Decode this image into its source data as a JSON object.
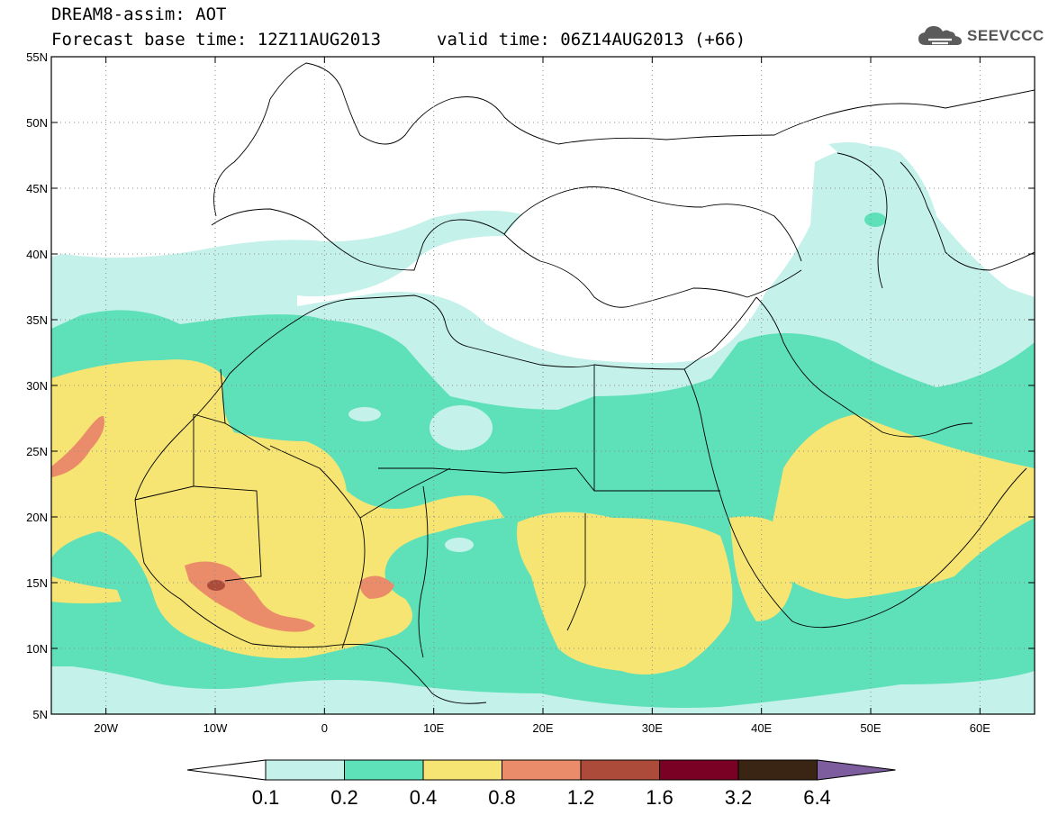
{
  "header": {
    "model_title": "DREAM8-assim: AOT",
    "forecast_base": "Forecast base time: 12Z11AUG2013",
    "valid_time": "valid time: 06Z14AUG2013 (+66)",
    "logo_text": "SEEVCCC"
  },
  "map": {
    "lon_range": [
      -25,
      65
    ],
    "lat_range": [
      5,
      55
    ],
    "lon_ticks": [
      {
        "lon": -20,
        "label": "20W"
      },
      {
        "lon": -10,
        "label": "10W"
      },
      {
        "lon": 0,
        "label": "0"
      },
      {
        "lon": 10,
        "label": "10E"
      },
      {
        "lon": 20,
        "label": "20E"
      },
      {
        "lon": 30,
        "label": "30E"
      },
      {
        "lon": 40,
        "label": "40E"
      },
      {
        "lon": 50,
        "label": "50E"
      },
      {
        "lon": 60,
        "label": "60E"
      }
    ],
    "lat_ticks": [
      {
        "lat": 55,
        "label": "55N"
      },
      {
        "lat": 50,
        "label": "50N"
      },
      {
        "lat": 45,
        "label": "45N"
      },
      {
        "lat": 40,
        "label": "40N"
      },
      {
        "lat": 35,
        "label": "35N"
      },
      {
        "lat": 30,
        "label": "30N"
      },
      {
        "lat": 25,
        "label": "25N"
      },
      {
        "lat": 20,
        "label": "20N"
      },
      {
        "lat": 15,
        "label": "15N"
      },
      {
        "lat": 10,
        "label": "10N"
      },
      {
        "lat": 5,
        "label": "5N"
      }
    ]
  },
  "colorbar": {
    "levels": [
      "0.1",
      "0.2",
      "0.4",
      "0.8",
      "1.2",
      "1.6",
      "3.2",
      "6.4"
    ],
    "colors": [
      "#ffffff",
      "#c4f1ea",
      "#5ee1b9",
      "#f6e473",
      "#ea8c69",
      "#ac4b3a",
      "#7a0024",
      "#3a2515",
      "#7e5d9e"
    ]
  }
}
